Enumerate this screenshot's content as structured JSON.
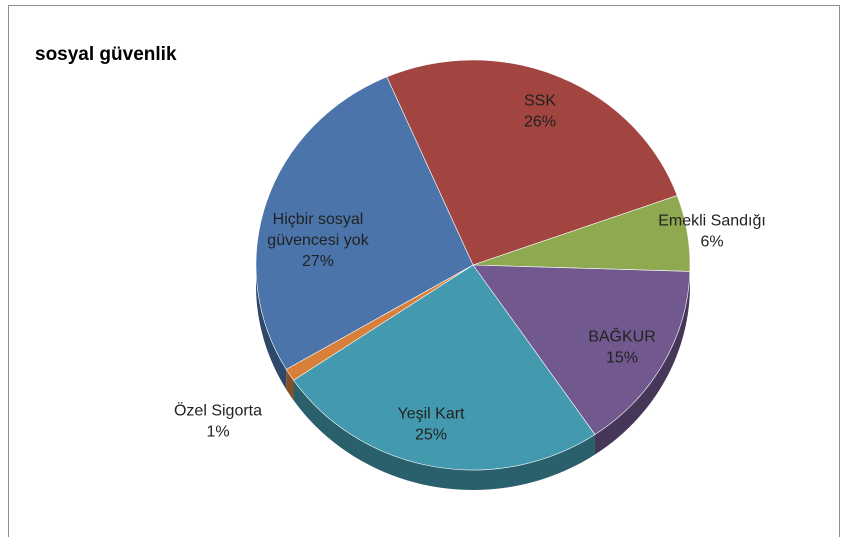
{
  "chart_data": {
    "type": "pie",
    "title": "sosyal güvenlik",
    "categories": [
      "SSK",
      "Emekli Sandığı",
      "BAĞKUR",
      "Yeşil Kart",
      "Özel Sigorta",
      "Hiçbir sosyal güvencesi yok"
    ],
    "values": [
      26,
      6,
      15,
      25,
      1,
      27
    ],
    "value_labels": [
      "26%",
      "6%",
      "15%",
      "25%",
      "1%",
      "27%"
    ],
    "colors": [
      "#a2443f",
      "#8ea94f",
      "#71588f",
      "#4399ae",
      "#d87f3a",
      "#4a74aa"
    ]
  }
}
